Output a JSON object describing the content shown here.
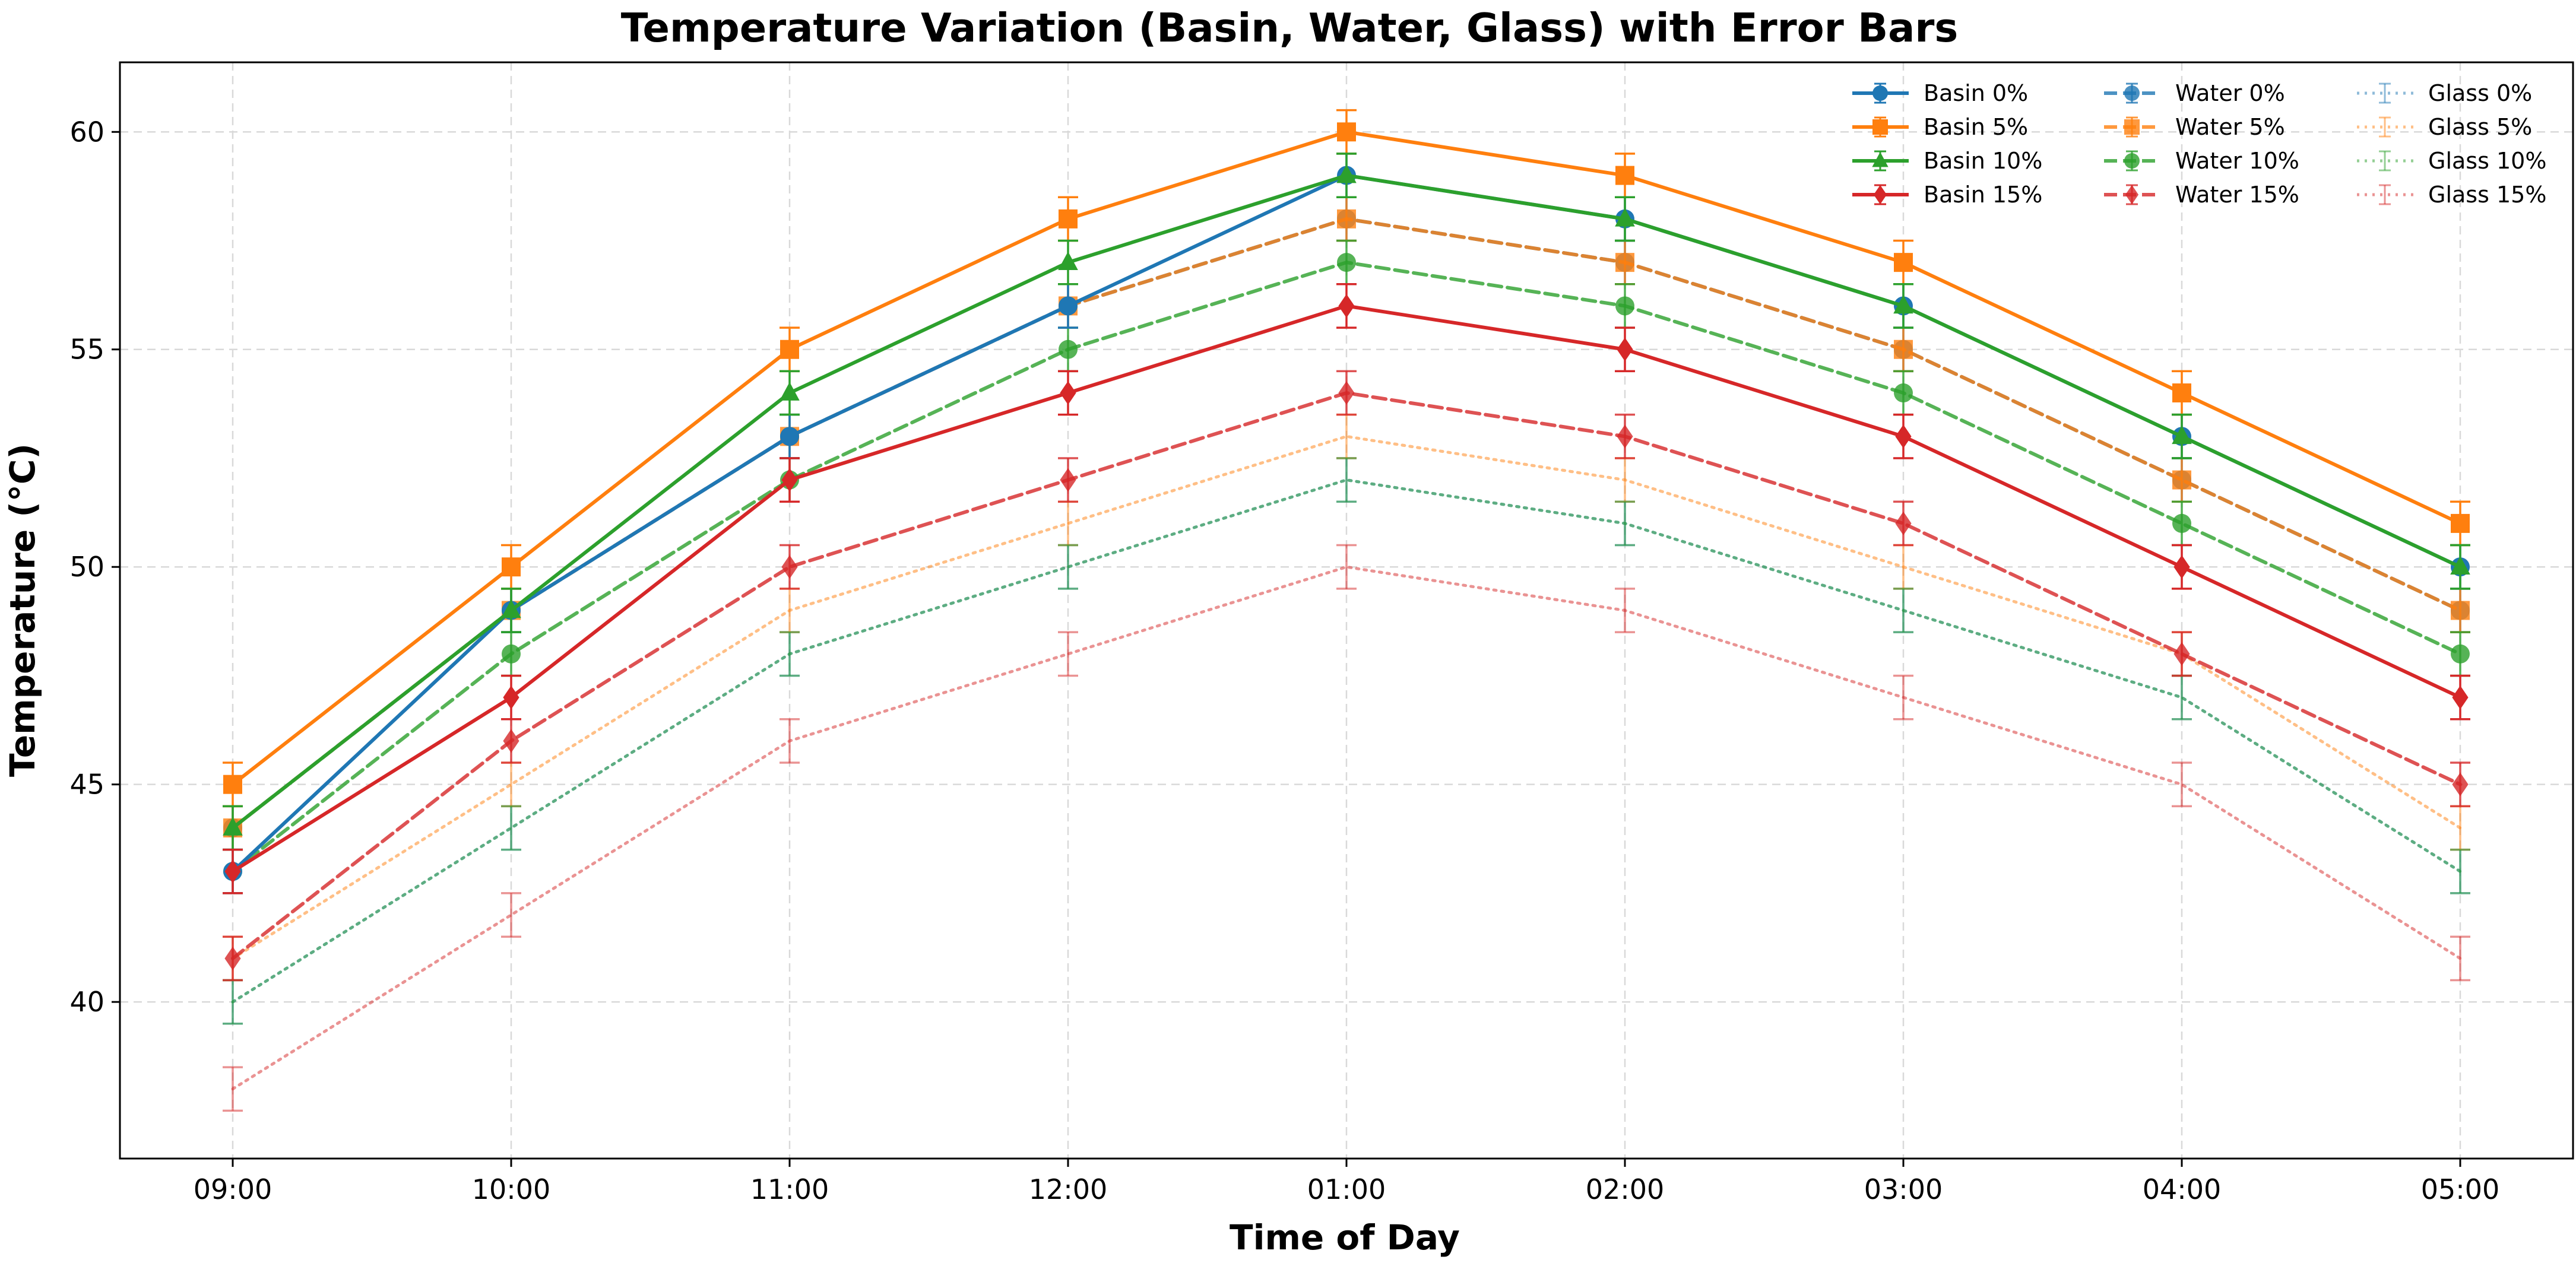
{
  "chart_data": {
    "type": "line",
    "title": "Temperature Variation (Basin, Water, Glass) with Error Bars",
    "xlabel": "Time of Day",
    "ylabel": "Temperature (°C)",
    "categories": [
      "09:00",
      "10:00",
      "11:00",
      "12:00",
      "01:00",
      "02:00",
      "03:00",
      "04:00",
      "05:00"
    ],
    "ylim": [
      36.4,
      61.6
    ],
    "yticks": [
      40,
      45,
      50,
      55,
      60
    ],
    "grid": true,
    "legend_position": "top-right",
    "error": 0.5,
    "series": [
      {
        "name": "Basin 0%",
        "group": "basin",
        "color": "#1f77b4",
        "marker": "circle",
        "linestyle": "solid",
        "values": [
          43,
          49,
          53,
          56,
          59,
          58,
          56,
          53,
          50
        ]
      },
      {
        "name": "Basin 5%",
        "group": "basin",
        "color": "#ff7f0e",
        "marker": "square",
        "linestyle": "solid",
        "values": [
          45,
          50,
          55,
          58,
          60,
          59,
          57,
          54,
          51
        ]
      },
      {
        "name": "Basin 10%",
        "group": "basin",
        "color": "#2ca02c",
        "marker": "triangle",
        "linestyle": "solid",
        "values": [
          44,
          49,
          54,
          57,
          59,
          58,
          56,
          53,
          50
        ]
      },
      {
        "name": "Basin 15%",
        "group": "basin",
        "color": "#d62728",
        "marker": "diamond",
        "linestyle": "solid",
        "values": [
          43,
          47,
          52,
          54,
          56,
          55,
          53,
          50,
          47
        ]
      },
      {
        "name": "Water 0%",
        "group": "water",
        "color": "#1f77b4",
        "marker": "circle",
        "linestyle": "dashed",
        "values": [
          44,
          49,
          53,
          56,
          58,
          57,
          55,
          52,
          49
        ]
      },
      {
        "name": "Water 5%",
        "group": "water",
        "color": "#ff7f0e",
        "marker": "square",
        "linestyle": "dashed",
        "values": [
          44,
          49,
          53,
          56,
          58,
          57,
          55,
          52,
          49
        ]
      },
      {
        "name": "Water 10%",
        "group": "water",
        "color": "#2ca02c",
        "marker": "circle",
        "linestyle": "dashed",
        "values": [
          43,
          48,
          52,
          55,
          57,
          56,
          54,
          51,
          48
        ]
      },
      {
        "name": "Water 15%",
        "group": "water",
        "color": "#d62728",
        "marker": "diamond",
        "linestyle": "dashed",
        "values": [
          41,
          46,
          50,
          52,
          54,
          53,
          51,
          48,
          45
        ]
      },
      {
        "name": "Glass 0%",
        "group": "glass",
        "color": "#1f77b4",
        "marker": "none",
        "linestyle": "dotted",
        "values": [
          40,
          44,
          48,
          50,
          52,
          51,
          49,
          47,
          43
        ]
      },
      {
        "name": "Glass 5%",
        "group": "glass",
        "color": "#ff7f0e",
        "marker": "none",
        "linestyle": "dotted",
        "values": [
          41,
          45,
          49,
          51,
          53,
          52,
          50,
          48,
          44
        ]
      },
      {
        "name": "Glass 10%",
        "group": "glass",
        "color": "#2ca02c",
        "marker": "none",
        "linestyle": "dotted",
        "values": [
          40,
          44,
          48,
          50,
          52,
          51,
          49,
          47,
          43
        ]
      },
      {
        "name": "Glass 15%",
        "group": "glass",
        "color": "#d62728",
        "marker": "none",
        "linestyle": "dotted",
        "values": [
          38,
          42,
          46,
          48,
          50,
          49,
          47,
          45,
          41
        ]
      }
    ]
  }
}
